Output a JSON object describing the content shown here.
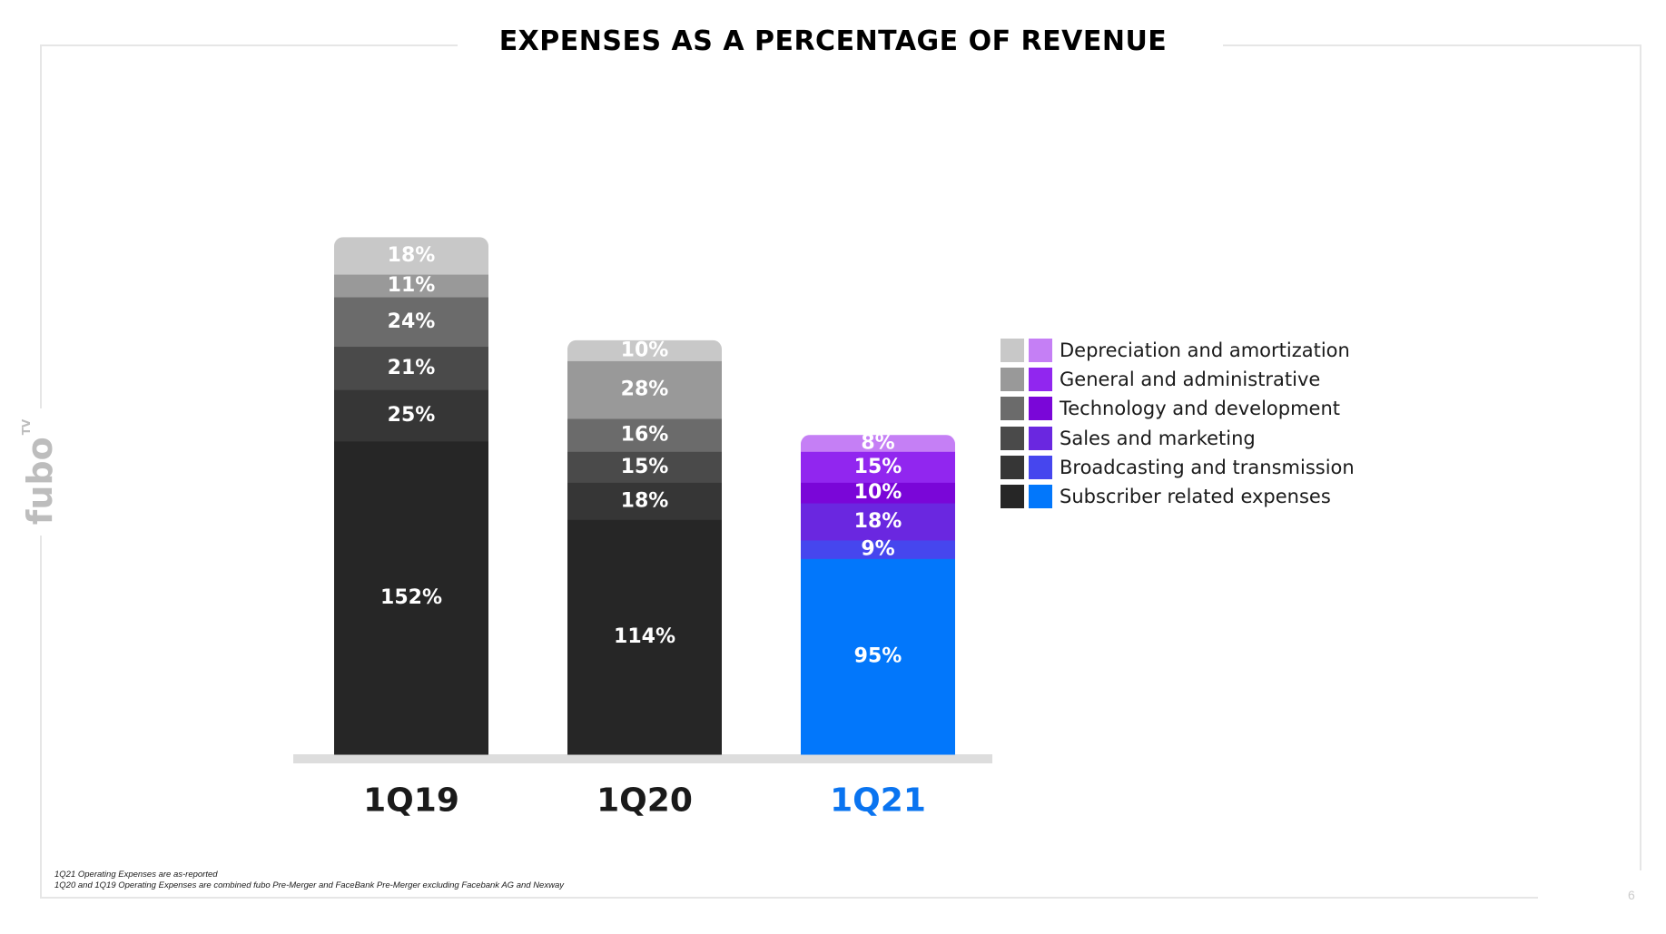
{
  "title": "EXPENSES AS A PERCENTAGE OF REVENUE",
  "logo": {
    "text": "fubo",
    "superscript": "TV",
    "color": "#bdbdbd"
  },
  "page_number": "6",
  "footnotes": [
    "1Q21 Operating Expenses are as-reported",
    "1Q20 and 1Q19 Operating Expenses are combined fubo Pre-Merger and FaceBank Pre-Merger excluding Facebank AG and Nexway"
  ],
  "colors": {
    "grayscale": [
      "#262626",
      "#363636",
      "#4a4a4a",
      "#6b6b6b",
      "#999999",
      "#c8c8c8"
    ],
    "highlight": [
      "#0277fb",
      "#4646ee",
      "#6a27e0",
      "#7a06d8",
      "#9126ef",
      "#c57ff5"
    ],
    "category_label_default": "#1a1a1a",
    "category_label_highlight": "#0a74f0",
    "baseline": "#dddddd"
  },
  "chart_data": {
    "type": "bar",
    "stacked": true,
    "categories": [
      "1Q19",
      "1Q20",
      "1Q21"
    ],
    "highlight_category": "1Q21",
    "series": [
      {
        "name": "Subscriber related expenses",
        "values": [
          152,
          114,
          95
        ],
        "labels": [
          "152%",
          "114%",
          "95%"
        ]
      },
      {
        "name": "Broadcasting and transmission",
        "values": [
          25,
          18,
          9
        ],
        "labels": [
          "25%",
          "18%",
          "9%"
        ]
      },
      {
        "name": "Sales and marketing",
        "values": [
          21,
          15,
          18
        ],
        "labels": [
          "21%",
          "15%",
          "18%"
        ]
      },
      {
        "name": "Technology and development",
        "values": [
          24,
          16,
          10
        ],
        "labels": [
          "24%",
          "16%",
          "10%"
        ]
      },
      {
        "name": "General and administrative",
        "values": [
          11,
          28,
          15
        ],
        "labels": [
          "11%",
          "28%",
          "15%"
        ]
      },
      {
        "name": "Depreciation and amortization",
        "values": [
          18,
          10,
          8
        ],
        "labels": [
          "18%",
          "10%",
          "8%"
        ]
      }
    ],
    "legend": {
      "position": "right",
      "items": [
        "Depreciation and amortization",
        "General and administrative",
        "Technology and development",
        "Sales and marketing",
        "Broadcasting and transmission",
        "Subscriber related expenses"
      ]
    },
    "grid": false,
    "xlabel": "",
    "ylabel": ""
  }
}
